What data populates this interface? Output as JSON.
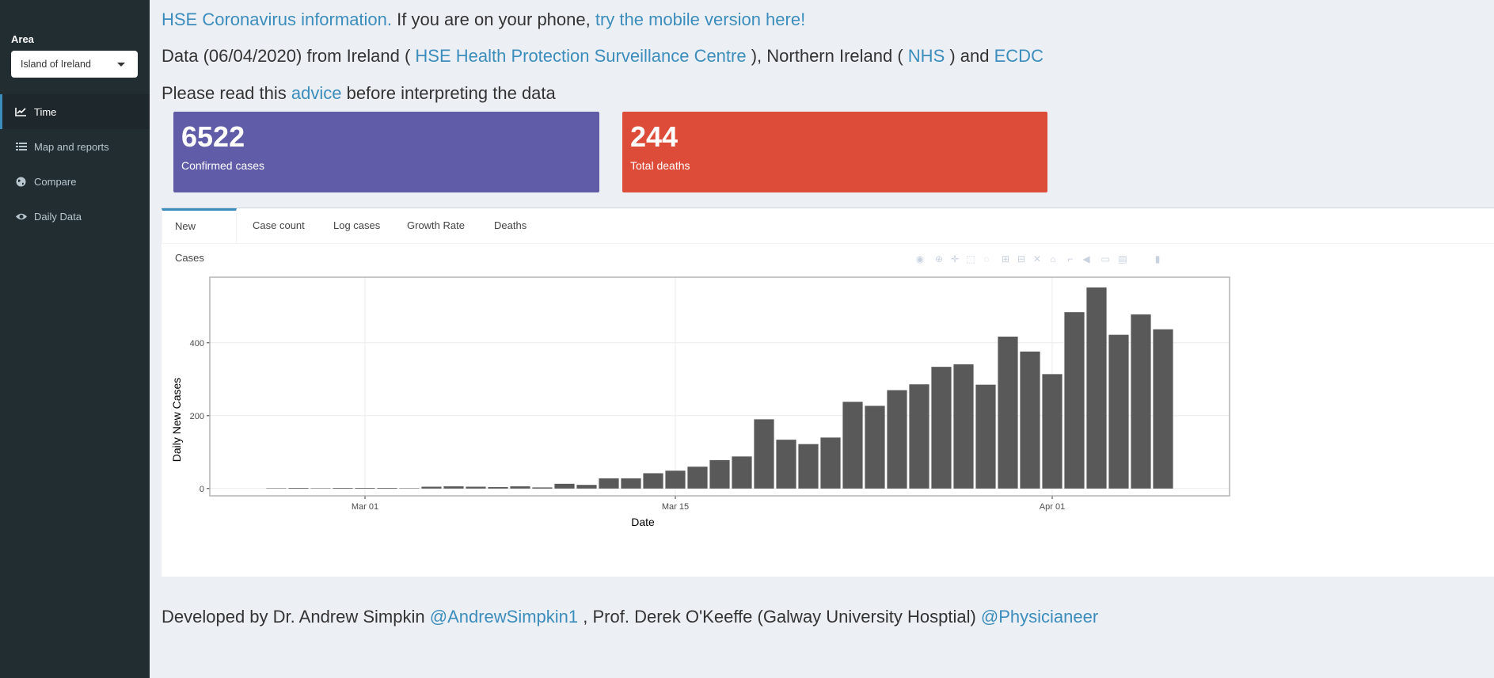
{
  "sidebar": {
    "area_label": "Area",
    "area_selected": "Island of Ireland",
    "items": [
      {
        "label": "Time",
        "icon": "line-chart-icon",
        "active": true
      },
      {
        "label": "Map and reports",
        "icon": "list-icon",
        "active": false
      },
      {
        "label": "Compare",
        "icon": "globe-icon",
        "active": false
      },
      {
        "label": "Daily Data",
        "icon": "eye-icon",
        "active": false
      }
    ]
  },
  "header": {
    "line1_link1": "HSE Coronavirus information.",
    "line1_text": " If you are on your phone, ",
    "line1_link2": "try the mobile version here!",
    "line2_pre": "Data (06/04/2020) from Ireland ( ",
    "line2_link1": "HSE Health Protection Surveillance Centre",
    "line2_mid": " ), Northern Ireland ( ",
    "line2_link2": "NHS",
    "line2_mid2": " ) and ",
    "line2_link3": "ECDC",
    "line3_pre": "Please read this ",
    "line3_link": "advice",
    "line3_post": " before interpreting the data"
  },
  "value_boxes": [
    {
      "value": "6522",
      "label": "Confirmed cases",
      "color": "#605ca8"
    },
    {
      "value": "244",
      "label": "Total deaths",
      "color": "#dd4b39"
    }
  ],
  "tabs": [
    "New Cases",
    "Case count",
    "Log cases",
    "Growth Rate",
    "Deaths"
  ],
  "active_tab": "New Cases",
  "modebar_icons": [
    "camera-icon",
    "zoom-icon",
    "pan-icon",
    "box-select-icon",
    "lasso-icon",
    "zoom-in-icon",
    "zoom-out-icon",
    "autoscale-icon",
    "reset-axes-icon",
    "spike-lines-icon",
    "hover-closest-icon",
    "hover-compare-icon",
    "toggle-hover-icon",
    "plotly-logo-icon"
  ],
  "chart_data": {
    "type": "bar",
    "xlabel": "Date",
    "ylabel": "Daily New Cases",
    "x_ticks": [
      "Mar 01",
      "Mar 15",
      "Apr 01"
    ],
    "y_ticks": [
      0,
      200,
      400
    ],
    "ylim": [
      -20,
      580
    ],
    "xlim": [
      "2020-02-23",
      "2020-04-09"
    ],
    "grid": true,
    "bar_color": "#595959",
    "categories": [
      "2020-02-26",
      "2020-02-27",
      "2020-02-28",
      "2020-02-29",
      "2020-03-01",
      "2020-03-02",
      "2020-03-03",
      "2020-03-04",
      "2020-03-05",
      "2020-03-06",
      "2020-03-07",
      "2020-03-08",
      "2020-03-09",
      "2020-03-10",
      "2020-03-11",
      "2020-03-12",
      "2020-03-13",
      "2020-03-14",
      "2020-03-15",
      "2020-03-16",
      "2020-03-17",
      "2020-03-18",
      "2020-03-19",
      "2020-03-20",
      "2020-03-21",
      "2020-03-22",
      "2020-03-23",
      "2020-03-24",
      "2020-03-25",
      "2020-03-26",
      "2020-03-27",
      "2020-03-28",
      "2020-03-29",
      "2020-03-30",
      "2020-03-31",
      "2020-04-01",
      "2020-04-02",
      "2020-04-03",
      "2020-04-04",
      "2020-04-05",
      "2020-04-06"
    ],
    "values": [
      1,
      0,
      1,
      0,
      0,
      0,
      1,
      5,
      6,
      5,
      4,
      6,
      3,
      13,
      10,
      28,
      28,
      42,
      49,
      60,
      78,
      88,
      190,
      134,
      122,
      140,
      238,
      227,
      270,
      286,
      334,
      341,
      285,
      417,
      376,
      314,
      484,
      552,
      422,
      478,
      437
    ]
  },
  "footer": {
    "pre": "Developed by Dr. Andrew Simpkin ",
    "link1": "@AndrewSimpkin1",
    "mid": " , Prof. Derek O'Keeffe (Galway University Hosptial) ",
    "link2": "@Physicianeer"
  }
}
